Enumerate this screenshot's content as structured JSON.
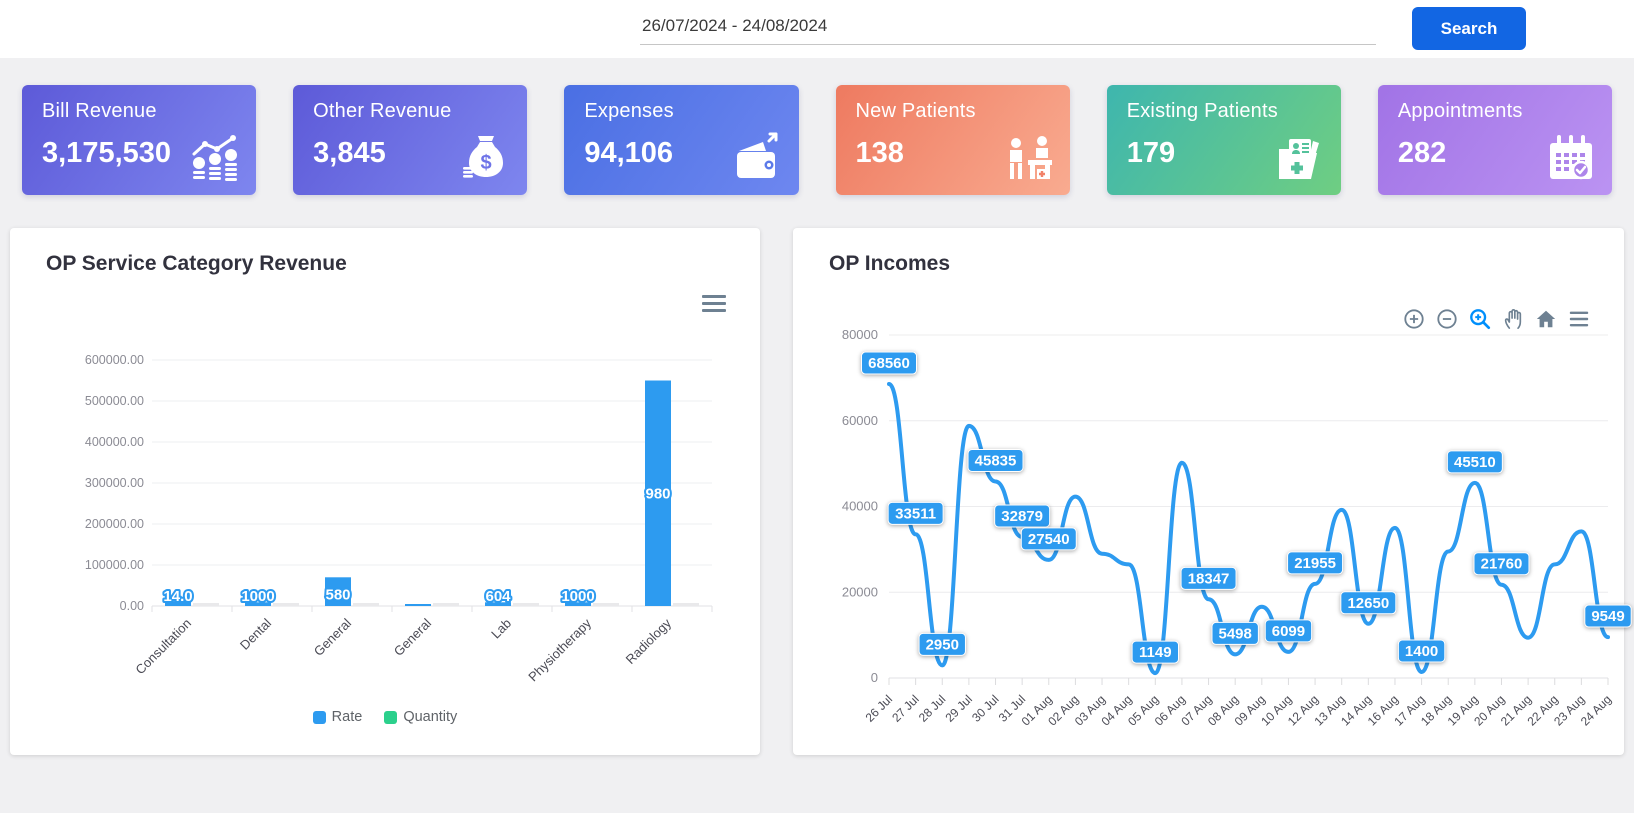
{
  "topbar": {
    "date_range": "26/07/2024 - 24/08/2024",
    "search_label": "Search"
  },
  "stat_cards": [
    {
      "title": "Bill Revenue",
      "value": "3,175,530",
      "icon": "coins-trend-icon",
      "gradient": [
        "#5d5ad8",
        "#7e86ef"
      ]
    },
    {
      "title": "Other Revenue",
      "value": "3,845",
      "icon": "money-bag-icon",
      "gradient": [
        "#5d5ad8",
        "#7e86ef"
      ]
    },
    {
      "title": "Expenses",
      "value": "94,106",
      "icon": "wallet-arrow-icon",
      "gradient": [
        "#4a6fe3",
        "#6e87f0"
      ]
    },
    {
      "title": "New Patients",
      "value": "138",
      "icon": "patients-desk-icon",
      "gradient": [
        "#ee7a60",
        "#f9ab90"
      ]
    },
    {
      "title": "Existing Patients",
      "value": "179",
      "icon": "patient-folder-icon",
      "gradient": [
        "#3eb6ae",
        "#6fce82"
      ]
    },
    {
      "title": "Appointments",
      "value": "282",
      "icon": "calendar-check-icon",
      "gradient": [
        "#a173e6",
        "#bb93f2"
      ]
    }
  ],
  "toolbar_icons": [
    "zoom-in",
    "zoom-out",
    "selection-zoom",
    "pan",
    "home",
    "menu"
  ],
  "chart_data": [
    {
      "type": "bar",
      "title": "OP Service Category Revenue",
      "categories": [
        "Consultation",
        "Dental",
        "General",
        "General",
        "Lab",
        "Physiotherapy",
        "Radiology"
      ],
      "series": [
        {
          "name": "Rate",
          "color": "#2d9bf0",
          "values": [
            12000,
            9000,
            70000,
            2500,
            9000,
            9000,
            550000
          ],
          "labels": [
            "14.0",
            "1000",
            "580",
            "",
            "604",
            "1000",
            "980"
          ]
        },
        {
          "name": "Quantity",
          "color": "#2bd08c",
          "values": [
            1000,
            1000,
            1000,
            1000,
            1000,
            1000,
            1000
          ],
          "labels": [
            "",
            "",
            "",
            "",
            "",
            "",
            ""
          ]
        }
      ],
      "ylim": [
        0,
        600000
      ],
      "ytick_labels": [
        "600000.00",
        "500000.00",
        "400000.00",
        "300000.00",
        "200000.00",
        "100000.00",
        "0.00"
      ],
      "grid": true,
      "legend_position": "bottom"
    },
    {
      "type": "line",
      "title": "OP Incomes",
      "x": [
        "26 Jul",
        "27 Jul",
        "28 Jul",
        "29 Jul",
        "30 Jul",
        "31 Jul",
        "01 Aug",
        "02 Aug",
        "03 Aug",
        "04 Aug",
        "05 Aug",
        "06 Aug",
        "07 Aug",
        "08 Aug",
        "09 Aug",
        "10 Aug",
        "12 Aug",
        "13 Aug",
        "14 Aug",
        "16 Aug",
        "17 Aug",
        "18 Aug",
        "19 Aug",
        "20 Aug",
        "21 Aug",
        "22 Aug",
        "23 Aug",
        "24 Aug"
      ],
      "values": [
        68560,
        33511,
        2950,
        58800,
        45835,
        32879,
        27540,
        42300,
        29000,
        26500,
        1149,
        50200,
        18347,
        5498,
        16600,
        6099,
        21955,
        39200,
        12650,
        35000,
        1400,
        29500,
        45510,
        21760,
        9400,
        26500,
        34200,
        9549
      ],
      "point_labels": [
        "68560",
        "33511",
        "2950",
        "",
        "45835",
        "32879",
        "27540",
        "",
        "",
        "",
        "1149",
        "",
        "18347",
        "5498",
        "",
        "6099",
        "21955",
        "",
        "12650",
        "",
        "1400",
        "",
        "45510",
        "21760",
        "",
        "",
        "",
        "9549"
      ],
      "ylim": [
        0,
        80000
      ],
      "yticks": [
        0,
        20000,
        40000,
        60000,
        80000
      ],
      "ytick_labels": [
        "0",
        "20000",
        "40000",
        "60000",
        "80000"
      ],
      "color": "#2d9bf0",
      "grid": true
    }
  ],
  "colors": {
    "accent_blue": "#2d9bf0",
    "accent_green": "#2bd08c",
    "search_button": "#1266e3",
    "toolbar_icon": "#6e8192",
    "toolbar_active": "#008ffb"
  }
}
